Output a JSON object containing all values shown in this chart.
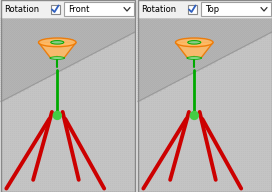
{
  "bg_color": "#e8e8e8",
  "left_panel": {
    "label": "Rotation",
    "dropdown": "Front"
  },
  "right_panel": {
    "label": "Rotation",
    "dropdown": "Top"
  },
  "toolbar_bg": "#f0f0f0",
  "toolbar_border": "#c0c0c0",
  "checkbox_bg": "#ffffff",
  "check_color": "#3060c0",
  "dropdown_bg": "#ffffff",
  "dropdown_border": "#a0a0a0",
  "text_color": "#000000",
  "viewport_bg": "#c0c0c0",
  "viewport_upper_bg": "#b0b0b0",
  "rebar_color": "#cc0000",
  "rebar_lw": 2.8,
  "stem_color": "#00aa00",
  "node_color": "#44cc44",
  "funnel_color": "#ee7700",
  "funnel_fill": "#ffbb66",
  "funnel_inner": "#88cc88"
}
